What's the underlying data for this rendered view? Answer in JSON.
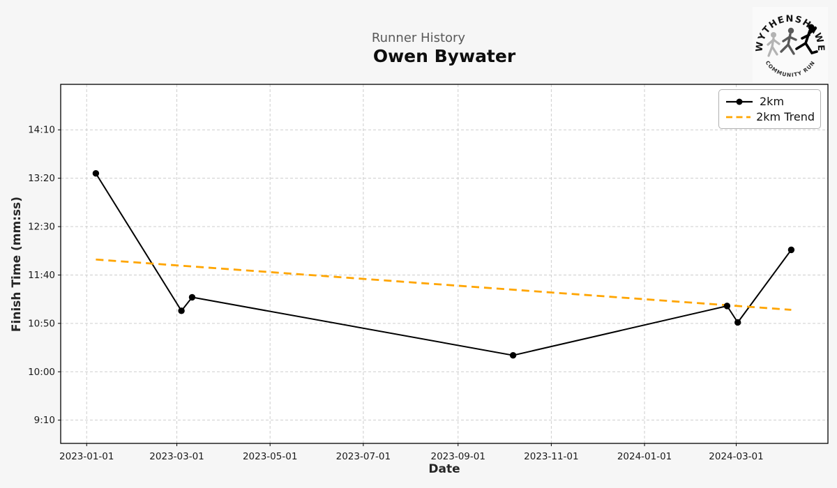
{
  "header": {
    "suptitle": "Runner History",
    "title": "Owen Bywater"
  },
  "logo": {
    "top_text": "WYTHENSHAWE",
    "bottom_text": "COMMUNITY RUN"
  },
  "chart_data": {
    "type": "line",
    "title": "Runner History",
    "subtitle": "Owen Bywater",
    "xlabel": "Date",
    "ylabel": "Finish Time (mm:ss)",
    "grid": true,
    "legend_position": "upper right",
    "colors": {
      "figure_bg": "#f6f6f6",
      "plot_bg": "#ffffff",
      "grid": "#cdcdcd",
      "spine": "#000000",
      "tick_text": "#1a1a1a"
    },
    "series": [
      {
        "name": "2km",
        "color": "#000000",
        "style": "solid",
        "marker": "circle",
        "x": [
          "2023-01-07",
          "2023-03-04",
          "2023-03-11",
          "2023-10-07",
          "2024-02-24",
          "2024-03-02",
          "2024-04-06"
        ],
        "y": [
          "13:25",
          "11:03",
          "11:17",
          "10:17",
          "11:08",
          "10:51",
          "12:06"
        ]
      },
      {
        "name": "2km Trend",
        "color": "#ffa500",
        "style": "dashed",
        "marker": "none",
        "x": [
          "2023-01-07",
          "2024-04-06"
        ],
        "y": [
          "11:56",
          "11:04"
        ]
      }
    ],
    "x_ticks": [
      "2023-01-01",
      "2023-03-01",
      "2023-05-01",
      "2023-07-01",
      "2023-09-01",
      "2023-11-01",
      "2024-01-01",
      "2024-03-01"
    ],
    "y_ticks": [
      "14:10",
      "13:20",
      "12:30",
      "11:40",
      "10:50",
      "10:00",
      "9:10"
    ],
    "xlim": [
      "2022-12-15",
      "2024-04-30"
    ],
    "ylim_seconds": [
      526,
      897
    ]
  }
}
